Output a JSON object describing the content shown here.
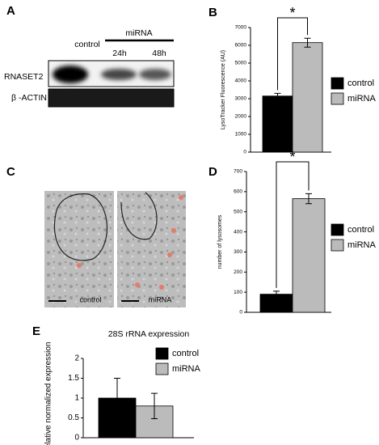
{
  "panel_labels": [
    "A",
    "B",
    "C",
    "D",
    "E"
  ],
  "blot": {
    "group_header": "miRNA",
    "lanes": [
      "control",
      "24h",
      "48h"
    ],
    "rows": [
      "RNASET2",
      "β -ACTIN"
    ]
  },
  "micrographs": {
    "labels": [
      "control",
      "miRNA"
    ]
  },
  "chart_data": [
    {
      "type": "bar",
      "y_label": "LysoTracker Fluorescence (AU)",
      "annotation": "*",
      "series": [
        {
          "name": "control",
          "color": "#000000",
          "values": [
            3150
          ],
          "errors": [
            150
          ]
        },
        {
          "name": "miRNA",
          "color": "#bbbbbb",
          "values": [
            6150
          ],
          "errors": [
            250
          ]
        }
      ],
      "ylim": [
        0,
        7000
      ],
      "yticks": [
        0,
        1000,
        2000,
        3000,
        4000,
        5000,
        6000,
        7000
      ]
    },
    {
      "type": "bar",
      "y_label": "number of lysosomes",
      "annotation": "*",
      "series": [
        {
          "name": "control",
          "color": "#000000",
          "values": [
            90
          ],
          "errors": [
            15
          ]
        },
        {
          "name": "miRNA",
          "color": "#bbbbbb",
          "values": [
            565
          ],
          "errors": [
            25
          ]
        }
      ],
      "ylim": [
        0,
        700
      ],
      "yticks": [
        0,
        100,
        200,
        300,
        400,
        500,
        600,
        700
      ]
    },
    {
      "type": "bar",
      "title": "28S rRNA expression",
      "y_label": "Relative normalized expression",
      "series": [
        {
          "name": "control",
          "color": "#000000",
          "values": [
            1.0
          ],
          "errors": [
            0.5
          ]
        },
        {
          "name": "miRNA",
          "color": "#bbbbbb",
          "values": [
            0.8
          ],
          "errors": [
            0.32
          ]
        }
      ],
      "ylim": [
        0,
        2
      ],
      "yticks": [
        0,
        0.5,
        1,
        1.5,
        2
      ]
    }
  ]
}
